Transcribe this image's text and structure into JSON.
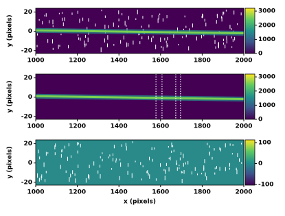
{
  "chart_data": [
    {
      "type": "heatmap",
      "xlim": [
        1000,
        2000
      ],
      "ylim": [
        -23,
        24
      ],
      "xticks": [
        1000,
        1200,
        1400,
        1600,
        1800,
        2000
      ],
      "yticks": [
        -20,
        0,
        20
      ],
      "ylabel": "y (pixels)",
      "background": "#440154",
      "speckles": true,
      "trace": {
        "x": [
          1000,
          2000
        ],
        "y": [
          1,
          -2
        ]
      },
      "colorbar": {
        "lim": [
          0,
          3200
        ],
        "ticks": [
          0,
          1000,
          2000,
          3000
        ]
      }
    },
    {
      "type": "heatmap",
      "xlim": [
        1000,
        2000
      ],
      "ylim": [
        -23,
        24
      ],
      "xticks": [
        1000,
        1200,
        1400,
        1600,
        1800,
        2000
      ],
      "yticks": [
        -20,
        0,
        20
      ],
      "ylabel": "y (pixels)",
      "background": "#440154",
      "speckles": false,
      "trace": {
        "x": [
          1000,
          2000
        ],
        "y": [
          1,
          -2
        ]
      },
      "vlines": [
        1578,
        1607,
        1673,
        1696
      ],
      "colorbar": {
        "lim": [
          0,
          3200
        ],
        "ticks": [
          0,
          1000,
          2000,
          3000
        ]
      }
    },
    {
      "type": "heatmap",
      "xlim": [
        1000,
        2000
      ],
      "ylim": [
        -23,
        24
      ],
      "xticks": [
        1000,
        1200,
        1400,
        1600,
        1800,
        2000
      ],
      "yticks": [
        -20,
        0,
        20
      ],
      "ylabel": "y (pixels)",
      "xlabel": "x (pixels)",
      "background": "#2a8a8a",
      "speckles": true,
      "colorbar": {
        "lim": [
          -103,
          113
        ],
        "ticks": [
          -100,
          0,
          100
        ]
      }
    }
  ]
}
